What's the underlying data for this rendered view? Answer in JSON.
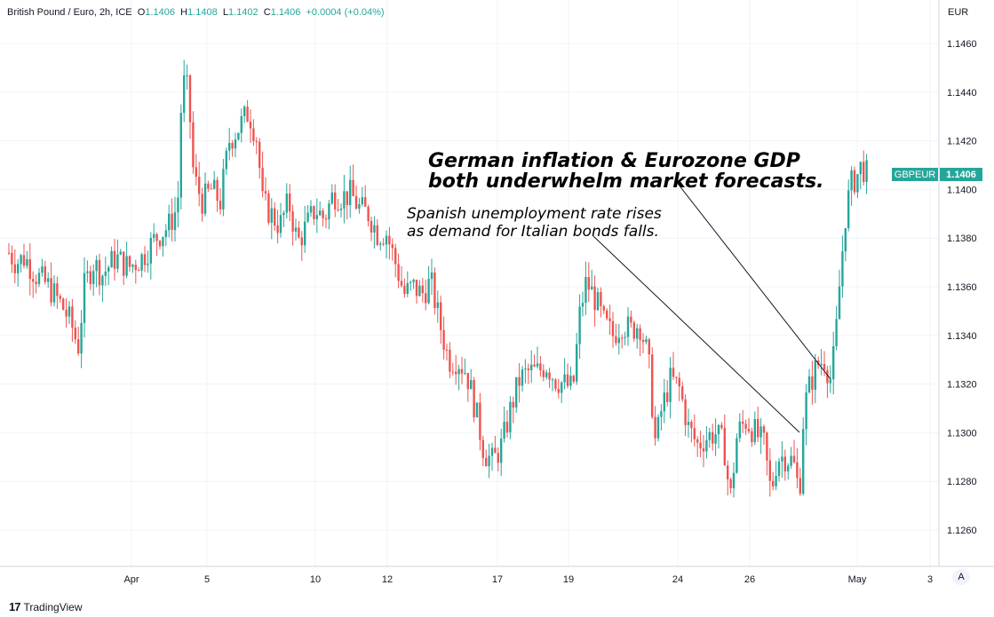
{
  "header": {
    "symbol": "British Pound / Euro, 2h, ICE",
    "open_label": "O",
    "open": "1.1406",
    "high_label": "H",
    "high": "1.1408",
    "low_label": "L",
    "low": "1.1402",
    "close_label": "C",
    "close": "1.1406",
    "change": "+0.0004 (+0.04%)"
  },
  "currency": "EUR",
  "price_tag": {
    "symbol": "GBPEUR",
    "value": "1.1406",
    "color": "#26a69a"
  },
  "footer": {
    "brand": "TradingView",
    "logo_text": "17"
  },
  "auto_button": "A",
  "colors": {
    "up": "#26a69a",
    "down": "#ef5350",
    "grid": "#f0f3fa",
    "axis": "#d1d4dc"
  },
  "chart_data": {
    "type": "candlestick",
    "title": "British Pound / Euro, 2h, ICE",
    "ylabel": "EUR",
    "ylim": [
      1.1245,
      1.1472
    ],
    "y_ticks": [
      "1.1460",
      "1.1440",
      "1.1420",
      "1.1400",
      "1.1380",
      "1.1360",
      "1.1340",
      "1.1320",
      "1.1300",
      "1.1280",
      "1.1260"
    ],
    "x_ticks": [
      "Apr",
      "5",
      "10",
      "12",
      "17",
      "19",
      "24",
      "26",
      "May",
      "3"
    ],
    "grid": true,
    "series": [
      {
        "values": [
          [
            0,
            1.1385
          ],
          [
            8,
            1.1375
          ],
          [
            18,
            1.137
          ],
          [
            28,
            1.1372
          ],
          [
            40,
            1.1365
          ],
          [
            55,
            1.136
          ],
          [
            70,
            1.1352
          ],
          [
            80,
            1.1345
          ],
          [
            88,
            1.1335
          ],
          [
            95,
            1.136
          ],
          [
            105,
            1.137
          ],
          [
            115,
            1.1365
          ],
          [
            130,
            1.1372
          ],
          [
            145,
            1.1368
          ],
          [
            160,
            1.1372
          ],
          [
            175,
            1.138
          ],
          [
            190,
            1.1385
          ],
          [
            200,
            1.1393
          ],
          [
            205,
            1.1445
          ],
          [
            212,
            1.144
          ],
          [
            218,
            1.1405
          ],
          [
            228,
            1.1395
          ],
          [
            238,
            1.14
          ],
          [
            248,
            1.1395
          ],
          [
            258,
            1.142
          ],
          [
            268,
            1.1425
          ],
          [
            280,
            1.1432
          ],
          [
            290,
            1.142
          ],
          [
            295,
            1.1395
          ],
          [
            305,
            1.139
          ],
          [
            315,
            1.1385
          ],
          [
            325,
            1.1395
          ],
          [
            335,
            1.1378
          ],
          [
            345,
            1.1385
          ],
          [
            355,
            1.1392
          ],
          [
            365,
            1.1388
          ],
          [
            375,
            1.1398
          ],
          [
            385,
            1.1397
          ],
          [
            395,
            1.1398
          ],
          [
            405,
            1.1392
          ],
          [
            415,
            1.139
          ],
          [
            425,
            1.1382
          ],
          [
            435,
            1.1382
          ],
          [
            445,
            1.137
          ],
          [
            455,
            1.1357
          ],
          [
            465,
            1.136
          ],
          [
            475,
            1.1357
          ],
          [
            485,
            1.1362
          ],
          [
            495,
            1.1345
          ],
          [
            505,
            1.133
          ],
          [
            515,
            1.133
          ],
          [
            525,
            1.1325
          ],
          [
            535,
            1.131
          ],
          [
            545,
            1.1292
          ],
          [
            555,
            1.1288
          ],
          [
            565,
            1.1295
          ],
          [
            575,
            1.131
          ],
          [
            585,
            1.1322
          ],
          [
            595,
            1.1325
          ],
          [
            605,
            1.1325
          ],
          [
            615,
            1.1328
          ],
          [
            625,
            1.1322
          ],
          [
            635,
            1.132
          ],
          [
            645,
            1.1318
          ],
          [
            653,
            1.135
          ],
          [
            660,
            1.1362
          ],
          [
            670,
            1.1355
          ],
          [
            680,
            1.1345
          ],
          [
            690,
            1.134
          ],
          [
            700,
            1.1345
          ],
          [
            710,
            1.1342
          ],
          [
            720,
            1.1345
          ],
          [
            730,
            1.133
          ],
          [
            738,
            1.1295
          ],
          [
            745,
            1.131
          ],
          [
            755,
            1.1322
          ],
          [
            765,
            1.1318
          ],
          [
            775,
            1.1302
          ],
          [
            785,
            1.1295
          ],
          [
            795,
            1.1298
          ],
          [
            805,
            1.13
          ],
          [
            815,
            1.1295
          ],
          [
            822,
            1.1272
          ],
          [
            830,
            1.13
          ],
          [
            840,
            1.1305
          ],
          [
            850,
            1.13
          ],
          [
            860,
            1.1295
          ],
          [
            868,
            1.1275
          ],
          [
            875,
            1.129
          ],
          [
            885,
            1.129
          ],
          [
            893,
            1.1288
          ],
          [
            900,
            1.1275
          ],
          [
            905,
            1.131
          ],
          [
            912,
            1.132
          ],
          [
            920,
            1.1328
          ],
          [
            928,
            1.133
          ],
          [
            935,
            1.1322
          ],
          [
            940,
            1.1335
          ],
          [
            946,
            1.1365
          ],
          [
            952,
            1.139
          ],
          [
            958,
            1.1402
          ],
          [
            964,
            1.1405
          ],
          [
            970,
            1.141
          ],
          [
            976,
            1.1406
          ]
        ]
      }
    ]
  },
  "annotations": {
    "title_line1": "German inflation & Eurozone GDP",
    "title_line2": "both underwhelm market forecasts.",
    "sub_line1": "Spanish unemployment rate rises",
    "sub_line2": "as demand for Italian bonds falls."
  }
}
